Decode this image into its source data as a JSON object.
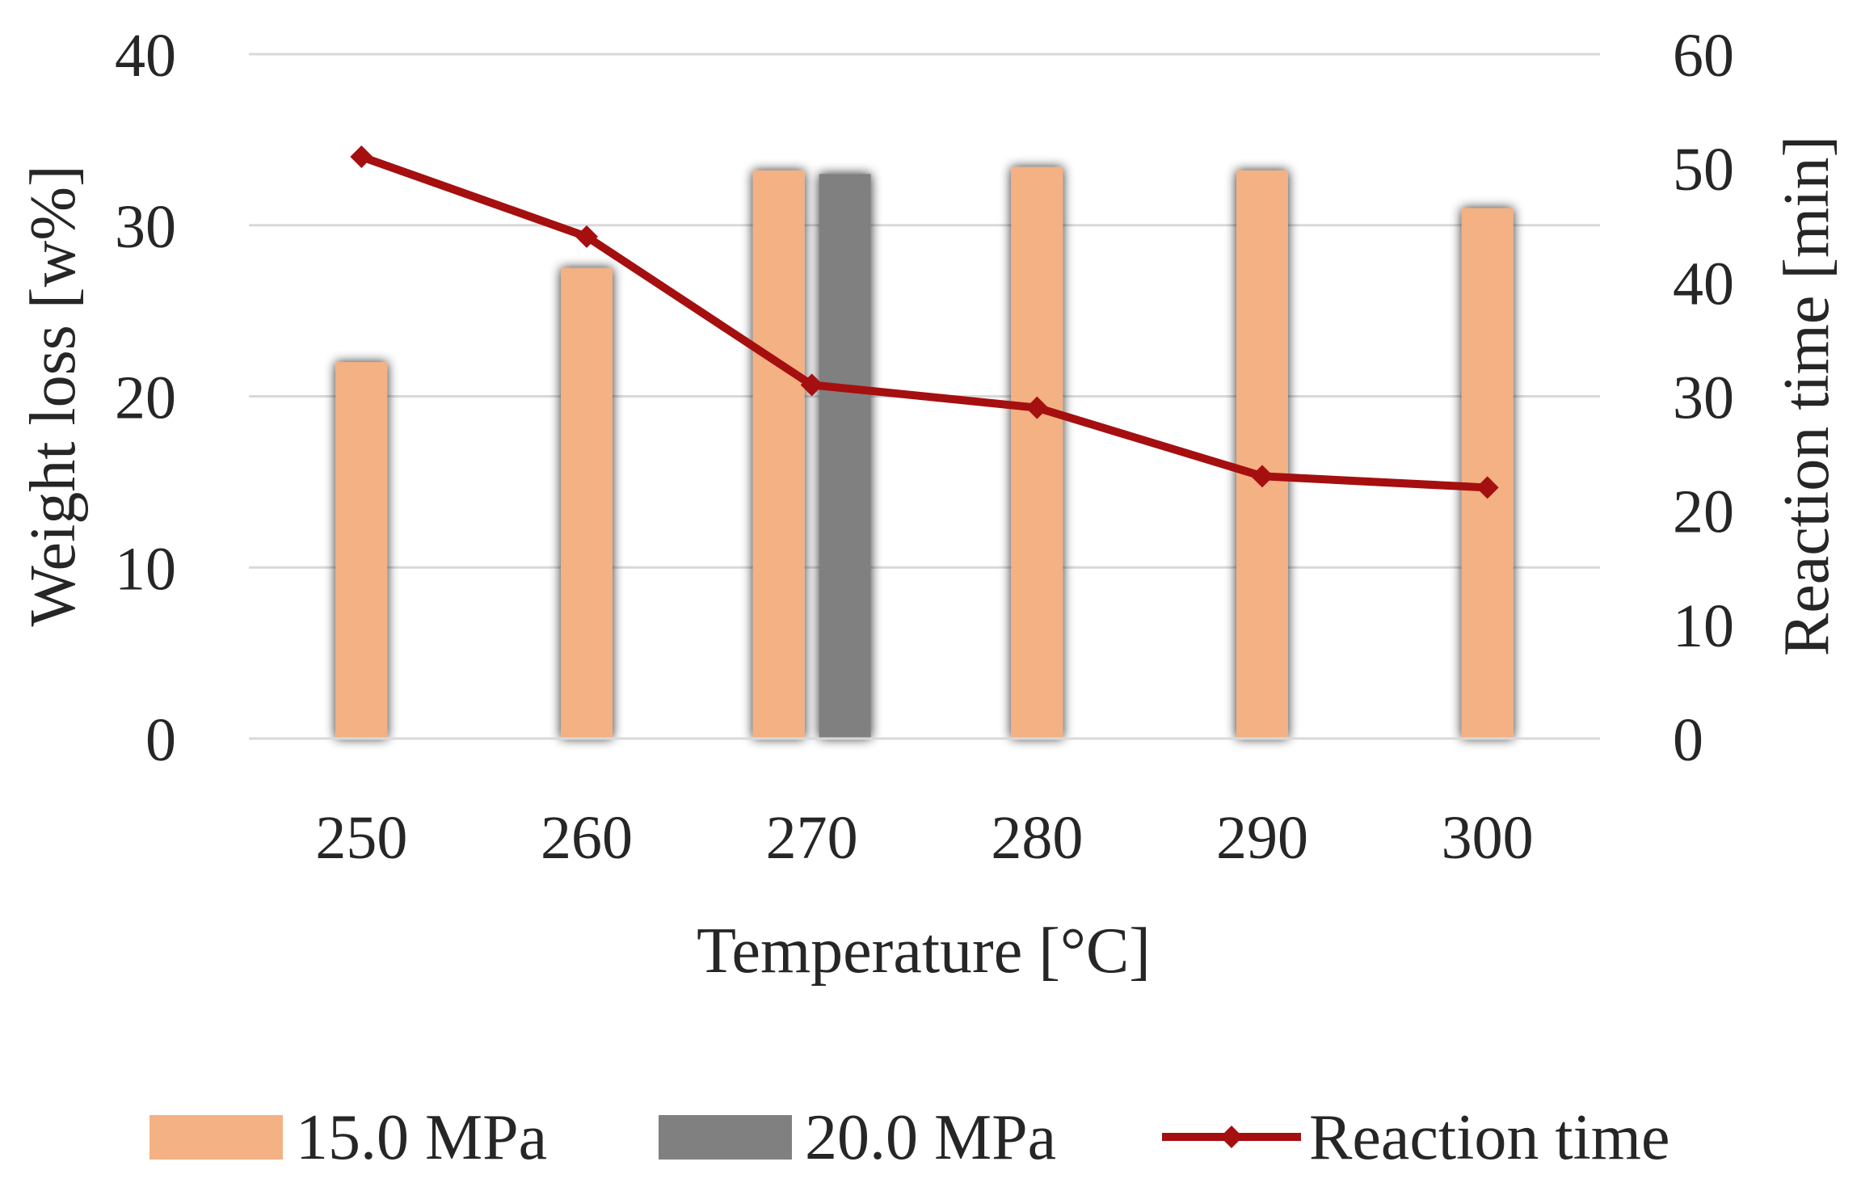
{
  "chart_data": {
    "type": "bar",
    "categories": [
      "250",
      "260",
      "270",
      "280",
      "290",
      "300"
    ],
    "series": [
      {
        "name": "15.0 MPa",
        "kind": "bar",
        "axis": "left",
        "color": "#F4B183",
        "values": [
          22.0,
          27.5,
          33.2,
          33.4,
          33.2,
          31.0
        ]
      },
      {
        "name": "20.0 MPa",
        "kind": "bar",
        "axis": "left",
        "color": "#808080",
        "values": [
          null,
          null,
          33.0,
          null,
          null,
          null
        ]
      },
      {
        "name": "Reaction time",
        "kind": "line",
        "axis": "right",
        "color": "#A50F0F",
        "values": [
          51,
          44,
          31,
          29,
          23,
          22
        ]
      }
    ],
    "title": "",
    "xlabel": "Temperature [°C]",
    "ylabel": "Weight loss [w%]",
    "y2label": "Reaction time [min]",
    "ylim": [
      0,
      40
    ],
    "y2lim": [
      0,
      60
    ],
    "yticks": [
      "0",
      "10",
      "20",
      "30",
      "40"
    ],
    "y2ticks": [
      "0",
      "10",
      "20",
      "30",
      "40",
      "50",
      "60"
    ],
    "grid": true,
    "legend_position": "bottom"
  }
}
